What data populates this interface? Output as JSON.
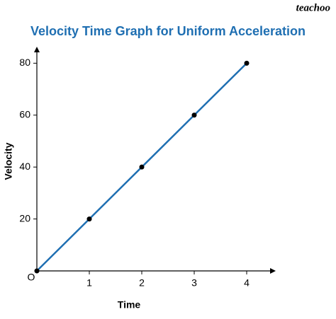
{
  "chart_data": {
    "type": "line",
    "title": "Velocity Time Graph for Uniform Acceleration",
    "watermark": "teachoo",
    "x_label": "Time",
    "y_label": "Velocity",
    "origin_label": "O",
    "x": [
      0,
      1,
      2,
      3,
      4
    ],
    "series": [
      {
        "name": "Velocity",
        "color": "#1f6fb2",
        "marker_color": "#000000",
        "values": [
          0,
          20,
          40,
          60,
          80
        ]
      }
    ],
    "xlim": [
      0,
      4.5
    ],
    "ylim": [
      0,
      85
    ],
    "xticks": [
      1,
      2,
      3,
      4
    ],
    "yticks": [
      20,
      40,
      60,
      80
    ],
    "grid": false
  }
}
